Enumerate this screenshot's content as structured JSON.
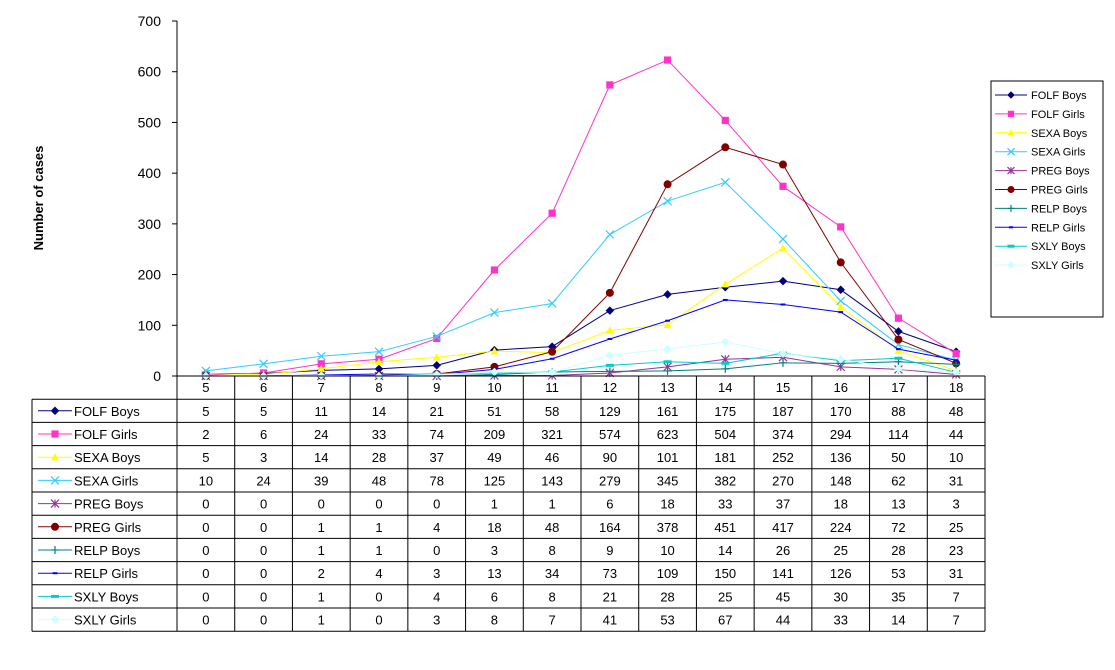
{
  "chart_data": {
    "type": "line",
    "title": "",
    "xlabel": "",
    "ylabel": "Number of cases",
    "ylim": [
      0,
      700
    ],
    "yticks": [
      0,
      100,
      200,
      300,
      400,
      500,
      600,
      700
    ],
    "grid": false,
    "legend_position": "right",
    "data_table": true,
    "categories": [
      "5",
      "6",
      "7",
      "8",
      "9",
      "10",
      "11",
      "12",
      "13",
      "14",
      "15",
      "16",
      "17",
      "18"
    ],
    "series": [
      {
        "name": "FOLF Boys",
        "color": "#000080",
        "marker": "diamond",
        "values": [
          5,
          5,
          11,
          14,
          21,
          51,
          58,
          129,
          161,
          175,
          187,
          170,
          88,
          48
        ]
      },
      {
        "name": "FOLF Girls",
        "color": "#ff33cc",
        "marker": "square",
        "values": [
          2,
          6,
          24,
          33,
          74,
          209,
          321,
          574,
          623,
          504,
          374,
          294,
          114,
          44
        ]
      },
      {
        "name": "SEXA Boys",
        "color": "#ffff00",
        "marker": "triangle",
        "values": [
          5,
          3,
          14,
          28,
          37,
          49,
          46,
          90,
          101,
          181,
          252,
          136,
          50,
          10
        ]
      },
      {
        "name": "SEXA Girls",
        "color": "#33ccff",
        "marker": "x",
        "values": [
          10,
          24,
          39,
          48,
          78,
          125,
          143,
          279,
          345,
          382,
          270,
          148,
          62,
          31
        ]
      },
      {
        "name": "PREG Boys",
        "color": "#993399",
        "marker": "star",
        "values": [
          0,
          0,
          0,
          0,
          0,
          1,
          1,
          6,
          18,
          33,
          37,
          18,
          13,
          3
        ]
      },
      {
        "name": "PREG Girls",
        "color": "#800000",
        "marker": "circle",
        "values": [
          0,
          0,
          1,
          1,
          4,
          18,
          48,
          164,
          378,
          451,
          417,
          224,
          72,
          25
        ]
      },
      {
        "name": "RELP Boys",
        "color": "#008080",
        "marker": "plus",
        "values": [
          0,
          0,
          1,
          1,
          0,
          3,
          8,
          9,
          10,
          14,
          26,
          25,
          28,
          23
        ]
      },
      {
        "name": "RELP Girls",
        "color": "#0000ff",
        "marker": "dash",
        "values": [
          0,
          0,
          2,
          4,
          3,
          13,
          34,
          73,
          109,
          150,
          141,
          126,
          53,
          31
        ]
      },
      {
        "name": "SXLY Boys",
        "color": "#00cccc",
        "marker": "bar",
        "values": [
          0,
          0,
          1,
          0,
          4,
          6,
          8,
          21,
          28,
          25,
          45,
          30,
          35,
          7
        ]
      },
      {
        "name": "SXLY Girls",
        "color": "#ccffff",
        "marker": "diamond",
        "values": [
          0,
          0,
          1,
          0,
          3,
          8,
          7,
          41,
          53,
          67,
          44,
          33,
          14,
          7
        ]
      }
    ]
  }
}
